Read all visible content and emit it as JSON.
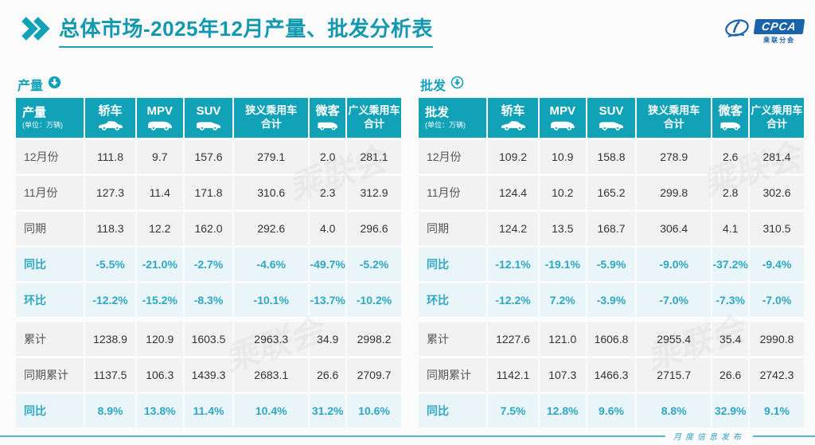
{
  "title": "总体市场-2025年12月产量、批发分析表",
  "logo": {
    "name": "CPCA",
    "subtitle": "乘联分会"
  },
  "footer": {
    "label": "月度信息发布"
  },
  "watermark": "乘联会",
  "colors": {
    "accent": "#12a2b8",
    "title_text": "#1399af",
    "pct_text": "#2ea7c4",
    "value_row_bg": "#f2f2f2",
    "pct_row_bg": "#e9f5f8",
    "logo_blue": "#1b63a8",
    "footer_line": "#58b7d5"
  },
  "icons": {
    "title_marker": "double-chevron-icon",
    "section_marker": "circle-down-arrow-icon"
  },
  "chart_data": [
    {
      "type": "table",
      "title": "产量",
      "unit": "(单位：万辆)",
      "columns": [
        {
          "label": "轿车",
          "icon": "sedan-icon"
        },
        {
          "label": "MPV",
          "icon": "mpv-icon"
        },
        {
          "label": "SUV",
          "icon": "suv-icon"
        },
        {
          "label": "狭义乘用车",
          "sublabel": "合计"
        },
        {
          "label": "微客",
          "icon": "microvan-icon"
        },
        {
          "label": "广义乘用车",
          "sublabel": "合计"
        }
      ],
      "rows": [
        {
          "label": "12月份",
          "style": "value",
          "cells": [
            "111.8",
            "9.7",
            "157.6",
            "279.1",
            "2.0",
            "281.1"
          ]
        },
        {
          "label": "11月份",
          "style": "value",
          "cells": [
            "127.3",
            "11.4",
            "171.8",
            "310.6",
            "2.3",
            "312.9"
          ]
        },
        {
          "label": "同期",
          "style": "value",
          "cells": [
            "118.3",
            "12.2",
            "162.0",
            "292.6",
            "4.0",
            "296.6"
          ]
        },
        {
          "label": "同比",
          "style": "pct",
          "cells": [
            "-5.5%",
            "-21.0%",
            "-2.7%",
            "-4.6%",
            "-49.7%",
            "-5.2%"
          ]
        },
        {
          "label": "环比",
          "style": "pct",
          "cells": [
            "-12.2%",
            "-15.2%",
            "-8.3%",
            "-10.1%",
            "-13.7%",
            "-10.2%"
          ]
        },
        {
          "label": "累计",
          "style": "value",
          "cells": [
            "1238.9",
            "120.9",
            "1603.5",
            "2963.3",
            "34.9",
            "2998.2"
          ]
        },
        {
          "label": "同期累计",
          "style": "value",
          "cells": [
            "1137.5",
            "106.3",
            "1439.3",
            "2683.1",
            "26.6",
            "2709.7"
          ]
        },
        {
          "label": "同比",
          "style": "pct",
          "cells": [
            "8.9%",
            "13.8%",
            "11.4%",
            "10.4%",
            "31.2%",
            "10.6%"
          ]
        }
      ]
    },
    {
      "type": "table",
      "title": "批发",
      "unit": "(单位：万辆)",
      "columns": [
        {
          "label": "轿车",
          "icon": "sedan-icon"
        },
        {
          "label": "MPV",
          "icon": "mpv-icon"
        },
        {
          "label": "SUV",
          "icon": "suv-icon"
        },
        {
          "label": "狭义乘用车",
          "sublabel": "合计"
        },
        {
          "label": "微客",
          "icon": "microvan-icon"
        },
        {
          "label": "广义乘用车",
          "sublabel": "合计"
        }
      ],
      "rows": [
        {
          "label": "12月份",
          "style": "value",
          "cells": [
            "109.2",
            "10.9",
            "158.8",
            "278.9",
            "2.6",
            "281.4"
          ]
        },
        {
          "label": "11月份",
          "style": "value",
          "cells": [
            "124.4",
            "10.2",
            "165.2",
            "299.8",
            "2.8",
            "302.6"
          ]
        },
        {
          "label": "同期",
          "style": "value",
          "cells": [
            "124.2",
            "13.5",
            "168.7",
            "306.4",
            "4.1",
            "310.5"
          ]
        },
        {
          "label": "同比",
          "style": "pct",
          "cells": [
            "-12.1%",
            "-19.1%",
            "-5.9%",
            "-9.0%",
            "-37.2%",
            "-9.4%"
          ]
        },
        {
          "label": "环比",
          "style": "pct",
          "cells": [
            "-12.2%",
            "7.2%",
            "-3.9%",
            "-7.0%",
            "-7.3%",
            "-7.0%"
          ]
        },
        {
          "label": "累计",
          "style": "value",
          "cells": [
            "1227.6",
            "121.0",
            "1606.8",
            "2955.4",
            "35.4",
            "2990.8"
          ]
        },
        {
          "label": "同期累计",
          "style": "value",
          "cells": [
            "1142.1",
            "107.3",
            "1466.3",
            "2715.7",
            "26.6",
            "2742.3"
          ]
        },
        {
          "label": "同比",
          "style": "pct",
          "cells": [
            "7.5%",
            "12.8%",
            "9.6%",
            "8.8%",
            "32.9%",
            "9.1%"
          ]
        }
      ]
    }
  ]
}
